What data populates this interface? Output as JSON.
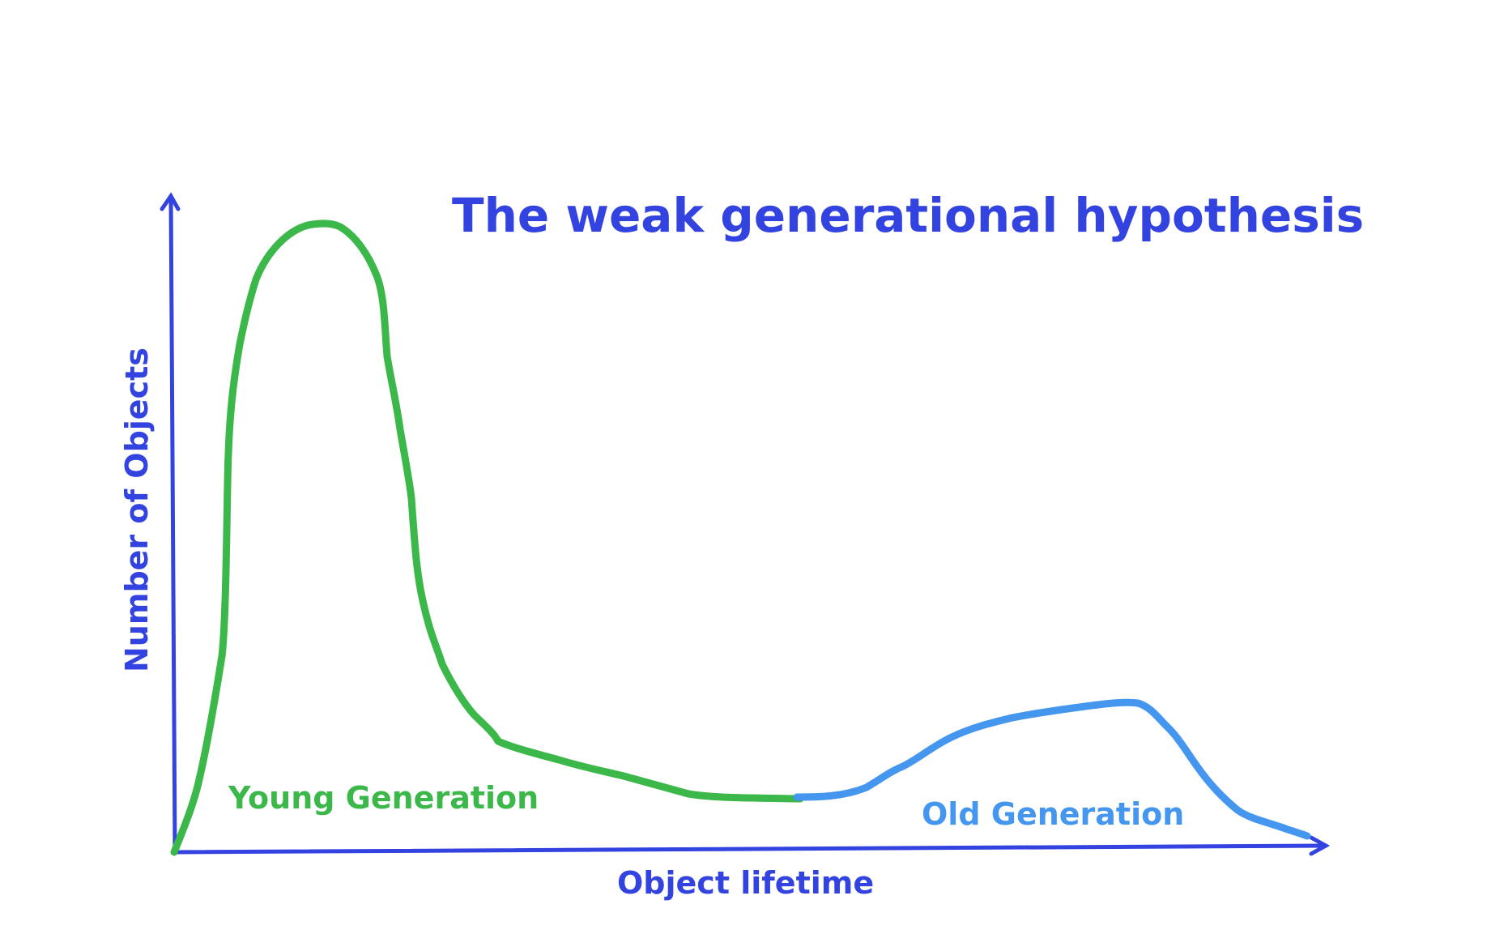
{
  "title": "The weak generational hypothesis",
  "y_axis_label": "Number of Objects",
  "x_axis_label": "Object lifetime",
  "regions": {
    "young": "Young Generation",
    "old": "Old Generation"
  },
  "colors": {
    "axis": "#3343e0",
    "title": "#3343e0",
    "young_curve": "#3cb84a",
    "old_curve": "#4596ee"
  }
}
